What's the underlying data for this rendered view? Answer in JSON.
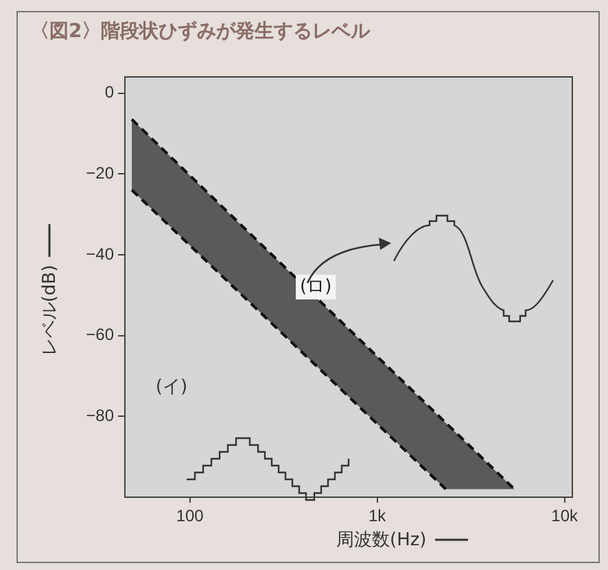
{
  "chart_data": {
    "type": "area",
    "title": "〈図2〉階段状ひずみが発生するレベル",
    "xlabel": "周波数(Hz)",
    "ylabel": "レベル(dB)",
    "log": "x",
    "xlim": [
      45,
      11000
    ],
    "xticks": [
      100,
      {
        "value": 1000,
        "label": "1k"
      },
      {
        "value": 10000,
        "label": "10k"
      }
    ],
    "ylim": [
      -100,
      4
    ],
    "yticks": [
      0,
      -20,
      -40,
      -60,
      -80
    ],
    "legend": false,
    "line_style": "dashed",
    "series": [
      {
        "type": "line",
        "color": "#111111",
        "x": [
          49,
          5400
        ],
        "values": [
          -6.5,
          -98
        ]
      },
      {
        "type": "line",
        "color": "#111111",
        "x": [
          49,
          2320
        ],
        "values": [
          -24,
          -98
        ]
      },
      {
        "color": "#5a5a5a",
        "x": [
          49,
          2320,
          5400
        ],
        "values": [
          null,
          null,
          null
        ],
        "lower": [
          -24,
          -98,
          -98
        ],
        "upper": [
          -6.5,
          -81.6,
          -98
        ]
      }
    ],
    "annotations": [
      {
        "text": "(ロ)",
        "x": 470,
        "y": -48
      },
      "(イ)"
    ]
  }
}
